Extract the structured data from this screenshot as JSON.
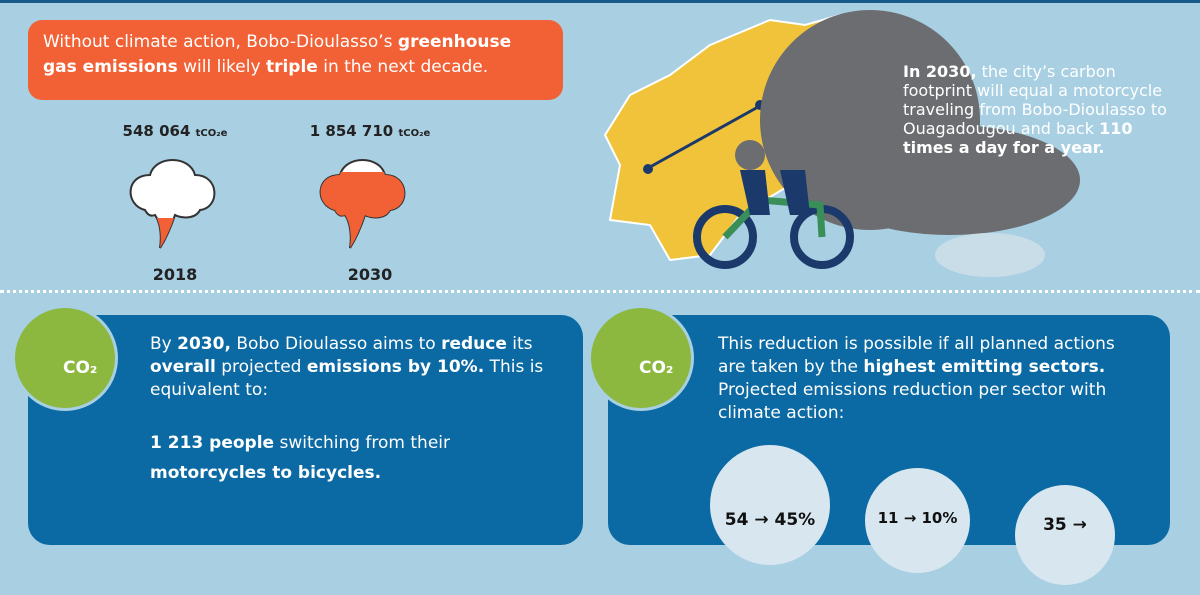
{
  "banner": {
    "parts": [
      "Without climate action, Bobo-Dioulasso’s ",
      "greenhouse gas emissions",
      " will likely ",
      "triple",
      " in the next decade."
    ]
  },
  "emissions": [
    {
      "value": "548 064",
      "unit": "tCO₂e",
      "year": "2018"
    },
    {
      "value": "1 854 710",
      "unit": "tCO₂e",
      "year": "2030"
    }
  ],
  "cloud": {
    "parts": [
      "In 2030,",
      " the city’s carbon footprint will equal a motorcycle traveling from Bobo-Dioulasso to Ouagadougou and back ",
      "110 times a day for a year."
    ]
  },
  "left_panel": {
    "icon": "CO₂",
    "intro": [
      "By ",
      "2030,",
      " Bobo Dioulasso aims to ",
      "reduce",
      " its ",
      "overall",
      " projected ",
      "emissions by 10%.",
      " This is equivalent to:"
    ],
    "equivalent": [
      "1 213 people",
      " switching from their ",
      "motorcycles to bicycles."
    ]
  },
  "right_panel": {
    "icon": "CO₂",
    "intro": [
      "This reduction is possible if all planned actions are taken by the ",
      "highest emitting sectors.",
      " Projected emissions reduction per sector with climate action:"
    ],
    "sectors": [
      "54 → 45%",
      "11 → 10%",
      "35 →"
    ]
  }
}
